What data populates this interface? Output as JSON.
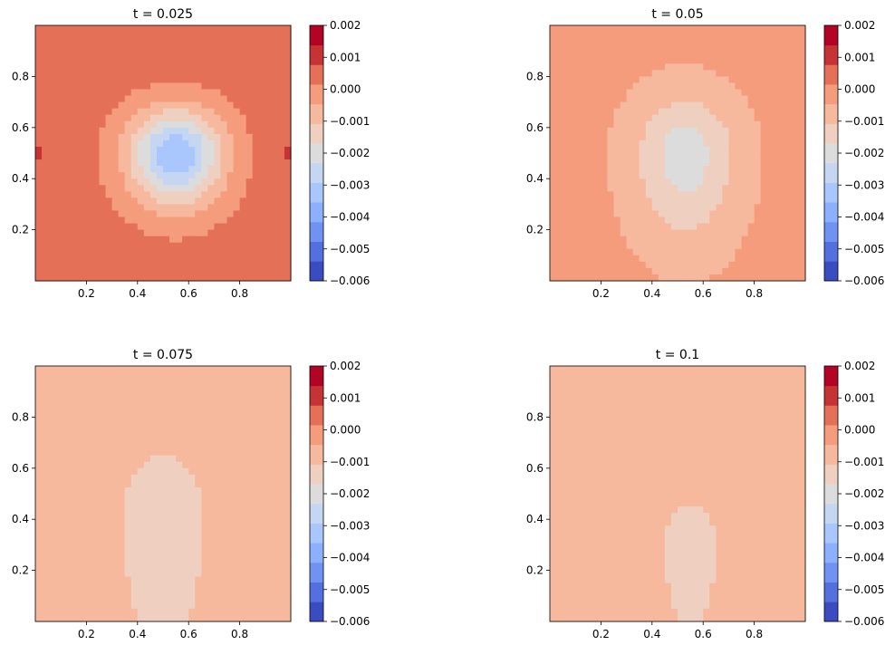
{
  "chart_data": [
    {
      "type": "contour",
      "title": "t = 0.025",
      "xlim": [
        0,
        1
      ],
      "ylim": [
        0,
        1
      ],
      "xticks": [
        "0.2",
        "0.4",
        "0.6",
        "0.8"
      ],
      "yticks": [
        "0.2",
        "0.4",
        "0.6",
        "0.8"
      ],
      "colorbar": {
        "range": [
          -0.006,
          0.002
        ],
        "ticks": [
          "0.002",
          "0.001",
          "0.000",
          "−0.001",
          "−0.002",
          "−0.003",
          "−0.004",
          "−0.005",
          "−0.006"
        ]
      },
      "field": {
        "background": 0.0004,
        "center": [
          0.55,
          0.5
        ],
        "center_value": -0.0035,
        "sigma_x": 0.13,
        "sigma_y": 0.12,
        "spread_down": 0.02,
        "spread_up": 0.0,
        "side_bump": 0.0004
      }
    },
    {
      "type": "contour",
      "title": "t = 0.05",
      "xlim": [
        0,
        1
      ],
      "ylim": [
        0,
        1
      ],
      "xticks": [
        "0.2",
        "0.4",
        "0.6",
        "0.8"
      ],
      "yticks": [
        "0.2",
        "0.4",
        "0.6",
        "0.8"
      ],
      "colorbar": {
        "range": [
          -0.006,
          0.002
        ],
        "ticks": [
          "0.002",
          "0.001",
          "0.000",
          "−0.001",
          "−0.002",
          "−0.003",
          "−0.004",
          "−0.005",
          "−0.006"
        ]
      },
      "field": {
        "background": -0.0003,
        "center": [
          0.53,
          0.5
        ],
        "center_value": -0.002,
        "sigma_x": 0.14,
        "sigma_y": 0.16,
        "spread_down": 0.05,
        "spread_up": 0.0,
        "side_bump": 0.0003
      }
    },
    {
      "type": "contour",
      "title": "t = 0.075",
      "xlim": [
        0,
        1
      ],
      "ylim": [
        0,
        1
      ],
      "xticks": [
        "0.2",
        "0.4",
        "0.6",
        "0.8"
      ],
      "yticks": [
        "0.2",
        "0.4",
        "0.6",
        "0.8"
      ],
      "colorbar": {
        "range": [
          -0.006,
          0.002
        ],
        "ticks": [
          "0.002",
          "0.001",
          "0.000",
          "−0.001",
          "−0.002",
          "−0.003",
          "−0.004",
          "−0.005",
          "−0.006"
        ]
      },
      "field": {
        "background": -0.0008,
        "center": [
          0.5,
          0.4
        ],
        "center_value": -0.0012,
        "sigma_x": 0.18,
        "sigma_y": 0.3,
        "spread_down": 0.1,
        "spread_up": 0.0,
        "side_bump": 0.0
      }
    },
    {
      "type": "contour",
      "title": "t = 0.1",
      "xlim": [
        0,
        1
      ],
      "ylim": [
        0,
        1
      ],
      "xticks": [
        "0.2",
        "0.4",
        "0.6",
        "0.8"
      ],
      "yticks": [
        "0.2",
        "0.4",
        "0.6",
        "0.8"
      ],
      "colorbar": {
        "range": [
          -0.006,
          0.002
        ],
        "ticks": [
          "0.002",
          "0.001",
          "0.000",
          "−0.001",
          "−0.002",
          "−0.003",
          "−0.004",
          "−0.005",
          "−0.006"
        ]
      },
      "field": {
        "background": -0.0009,
        "center": [
          0.55,
          0.3
        ],
        "center_value": -0.0011,
        "sigma_x": 0.2,
        "sigma_y": 0.32,
        "spread_down": 0.1,
        "spread_up": 0.0,
        "side_bump": 0.0
      }
    }
  ],
  "colors": {
    "levels": [
      "#3b4cc0",
      "#5470de",
      "#6f92f3",
      "#8db0fe",
      "#aac7fd",
      "#c5d6f2",
      "#dddcdc",
      "#efcfbf",
      "#f7b99e",
      "#f59c7d",
      "#e57058",
      "#c53334",
      "#b40426"
    ],
    "low": "#3b4cc0",
    "high": "#b40426"
  }
}
